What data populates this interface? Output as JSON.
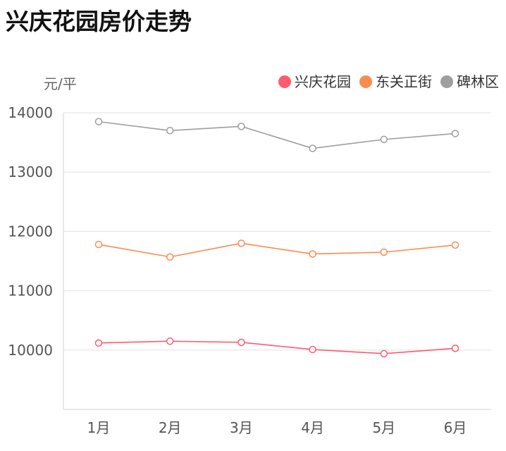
{
  "title": "兴庆花园房价走势",
  "chart_data": {
    "type": "line",
    "ylabel": "元/平",
    "categories": [
      "1月",
      "2月",
      "3月",
      "4月",
      "5月",
      "6月"
    ],
    "ylim": [
      9000,
      14000
    ],
    "yticks": [
      10000,
      11000,
      12000,
      13000,
      14000
    ],
    "grid": true,
    "legend_position": "top-right",
    "series": [
      {
        "name": "兴庆花园",
        "color": "#ff5a6e",
        "values": [
          10120,
          10150,
          10130,
          10010,
          9940,
          10030
        ]
      },
      {
        "name": "东关正街",
        "color": "#ff8a4f",
        "values": [
          11780,
          11570,
          11800,
          11620,
          11650,
          11770
        ]
      },
      {
        "name": "碑林区",
        "color": "#9e9e9e",
        "values": [
          13850,
          13700,
          13770,
          13400,
          13550,
          13650
        ]
      }
    ]
  }
}
